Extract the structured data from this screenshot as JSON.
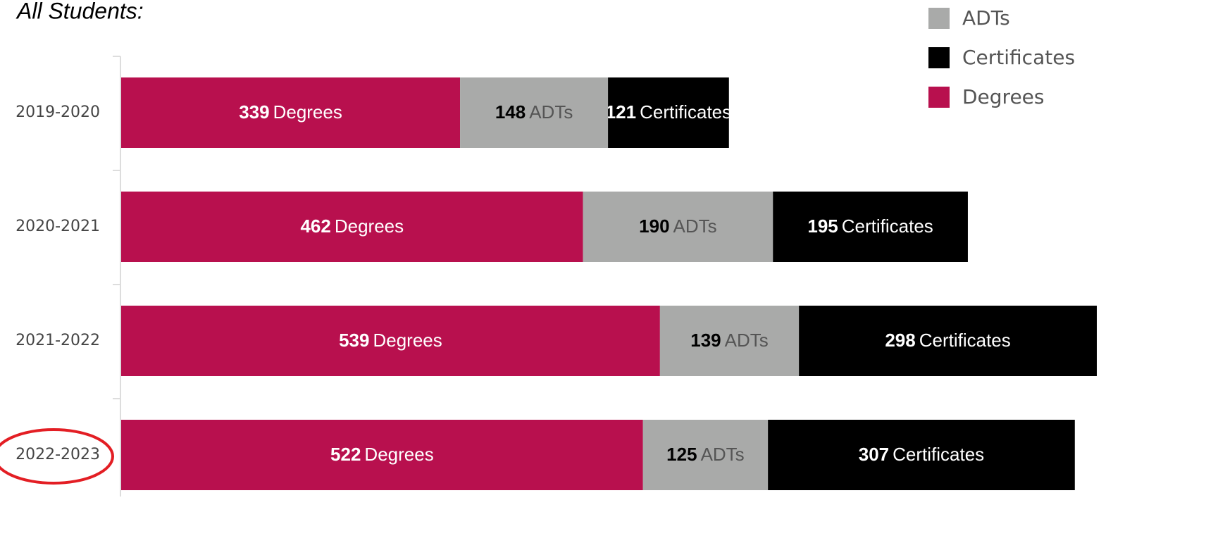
{
  "chart_data": {
    "type": "stacked-bar-horizontal",
    "title": "All Students:",
    "categories": [
      "2019-2020",
      "2020-2021",
      "2021-2022",
      "2022-2023"
    ],
    "series": [
      {
        "name": "Degrees",
        "color": "#b8104e",
        "values": [
          339,
          462,
          539,
          522
        ]
      },
      {
        "name": "ADTs",
        "color": "#a9aaa9",
        "values": [
          148,
          190,
          139,
          125
        ]
      },
      {
        "name": "Certificates",
        "color": "#000000",
        "values": [
          121,
          195,
          298,
          307
        ]
      }
    ],
    "legend": "top-right"
  }
}
